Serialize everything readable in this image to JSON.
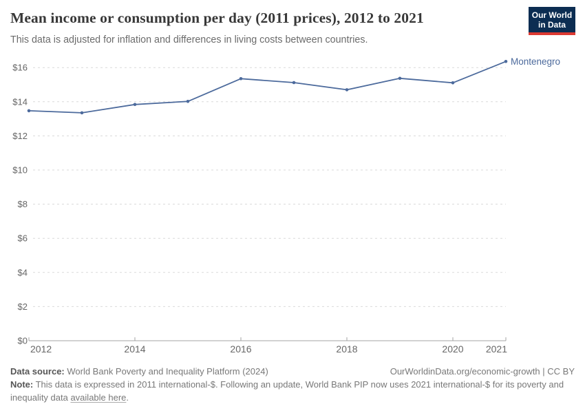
{
  "header": {
    "title": "Mean income or consumption per day (2011 prices), 2012 to 2021",
    "subtitle": "This data is adjusted for inflation and differences in living costs between countries.",
    "logo": {
      "line1": "Our World",
      "line2": "in Data",
      "bg_color": "#0c2d52",
      "bar_color": "#dc3a32"
    }
  },
  "chart_data": {
    "type": "line",
    "title": "Mean income or consumption per day (2011 prices), 2012 to 2021",
    "x": [
      2012,
      2013,
      2014,
      2015,
      2016,
      2017,
      2018,
      2019,
      2020,
      2021
    ],
    "series": [
      {
        "name": "Montenegro",
        "color": "#4C6A9C",
        "values": [
          13.47,
          13.35,
          13.84,
          14.02,
          15.35,
          15.12,
          14.7,
          15.37,
          15.11,
          16.36
        ]
      }
    ],
    "xticks": [
      2012,
      2014,
      2016,
      2018,
      2020,
      2021
    ],
    "yticks": [
      0,
      2,
      4,
      6,
      8,
      10,
      12,
      14,
      16
    ],
    "ytick_prefix": "$",
    "xlim": [
      2012,
      2021
    ],
    "ylim": [
      0,
      16.8
    ],
    "grid": "horizontal-dashed",
    "legend_position": "line-end-label",
    "end_label": "Montenegro",
    "xlabel": "",
    "ylabel": ""
  },
  "footer": {
    "datasource_label": "Data source:",
    "datasource_value": " World Bank Poverty and Inequality Platform (2024)",
    "attribution": "OurWorldinData.org/economic-growth | CC BY",
    "note_label": "Note:",
    "note_before_link": " This data is expressed in 2011 international-$. Following an update, World Bank PIP now uses 2021 international-$ for its poverty and inequality data ",
    "note_link": "available here",
    "note_after_link": "."
  },
  "colors": {
    "line": "#4C6A9C",
    "grid": "#d9d9d9",
    "axis": "#a3a3a3",
    "tick_text": "#666666",
    "title_text": "#383838",
    "subtitle_text": "#6b6b6b"
  }
}
